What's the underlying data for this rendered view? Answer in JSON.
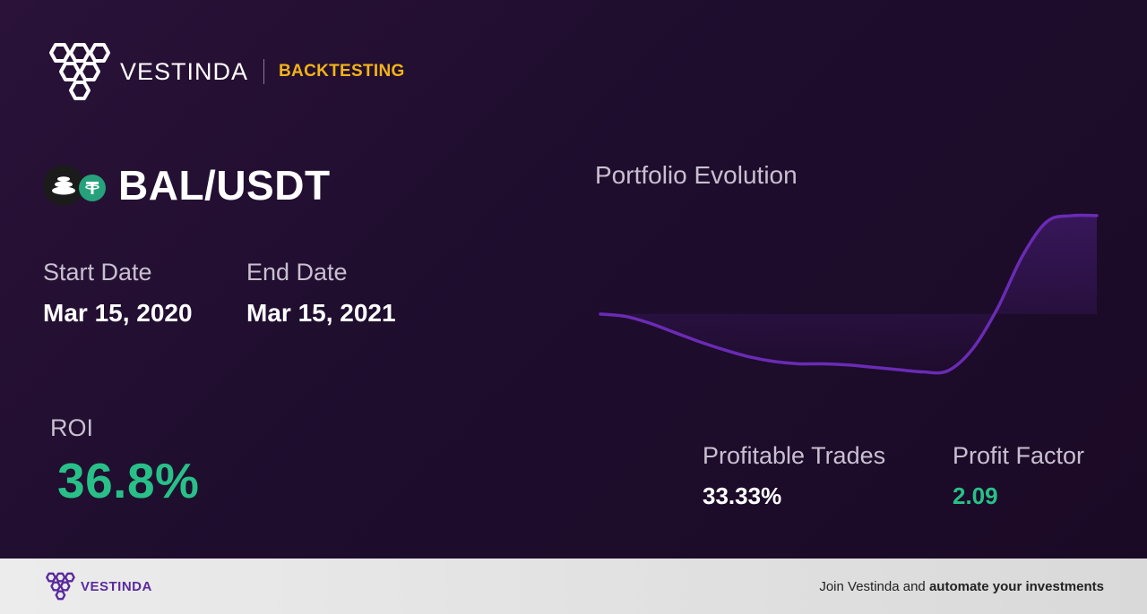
{
  "header": {
    "brand": "VESTINDA",
    "tag": "BACKTESTING"
  },
  "pair": {
    "name": "BAL/USDT",
    "base_icon": "balancer-icon",
    "quote_icon": "tether-icon"
  },
  "dates": {
    "start_label": "Start Date",
    "start_value": "Mar 15, 2020",
    "end_label": "End Date",
    "end_value": "Mar 15, 2021"
  },
  "roi": {
    "label": "ROI",
    "value": "36.8%"
  },
  "stats": {
    "profitable_trades_label": "Profitable Trades",
    "profitable_trades_value": "33.33%",
    "profit_factor_label": "Profit Factor",
    "profit_factor_value": "2.09"
  },
  "chart_data": {
    "type": "area",
    "title": "Portfolio Evolution",
    "x": [
      0,
      5,
      10,
      15,
      20,
      25,
      30,
      35,
      40,
      45,
      50,
      55,
      60,
      65,
      70,
      75,
      80,
      85,
      90,
      95,
      100
    ],
    "series": [
      {
        "values": [
          0,
          -2,
          -8,
          -16,
          -24,
          -31,
          -37,
          -41,
          -43,
          -43,
          -44,
          -46,
          -48,
          -50,
          -49,
          -30,
          5,
          50,
          80,
          85,
          85
        ]
      }
    ],
    "ylim": [
      -55,
      95
    ],
    "line_color": "#6a2bb5",
    "grid": false
  },
  "colors": {
    "accent_green": "#28c088",
    "accent_gold": "#f2b417",
    "line_purple": "#6a2bb5"
  },
  "footer": {
    "brand": "VESTINDA",
    "text_prefix": "Join Vestinda and ",
    "text_bold": "automate your investments"
  }
}
